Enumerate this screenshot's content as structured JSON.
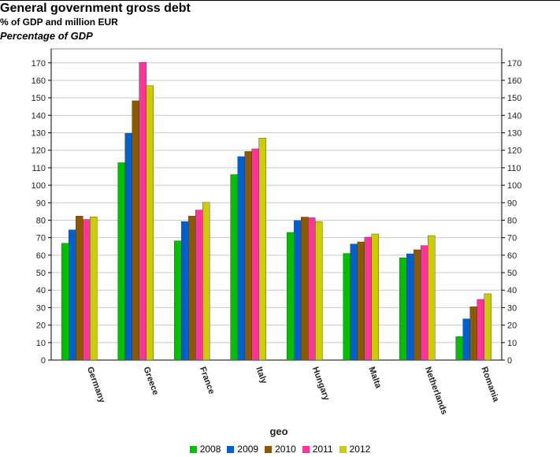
{
  "header": {
    "title": "General government gross debt",
    "subtitle": "% of GDP and million EUR",
    "subtitle2": "Percentage of GDP"
  },
  "chart_data": {
    "type": "bar",
    "xlabel": "geo",
    "ylabel": "",
    "ylim": [
      0,
      178
    ],
    "yticks": [
      0,
      10,
      20,
      30,
      40,
      50,
      60,
      70,
      80,
      90,
      100,
      110,
      120,
      130,
      140,
      150,
      160,
      170
    ],
    "grid": true,
    "legend_position": "bottom",
    "categories": [
      "Germany",
      "Greece",
      "France",
      "Italy",
      "Hungary",
      "Malta",
      "Netherlands",
      "Romania"
    ],
    "series": [
      {
        "name": "2008",
        "color": "#00c000",
        "values": [
          66.8,
          112.9,
          68.2,
          106.1,
          73.0,
          61.0,
          58.5,
          13.4
        ]
      },
      {
        "name": "2009",
        "color": "#0060d0",
        "values": [
          74.5,
          129.7,
          79.2,
          116.4,
          79.8,
          66.4,
          60.8,
          23.6
        ]
      },
      {
        "name": "2010",
        "color": "#8b5a00",
        "values": [
          82.4,
          148.3,
          82.4,
          119.3,
          81.8,
          67.6,
          63.1,
          30.5
        ]
      },
      {
        "name": "2011",
        "color": "#ff3399",
        "values": [
          80.4,
          170.3,
          85.8,
          120.8,
          81.4,
          70.3,
          65.5,
          34.7
        ]
      },
      {
        "name": "2012",
        "color": "#cccc00",
        "values": [
          81.9,
          156.9,
          90.2,
          127.0,
          79.2,
          72.1,
          71.2,
          37.9
        ]
      }
    ]
  }
}
